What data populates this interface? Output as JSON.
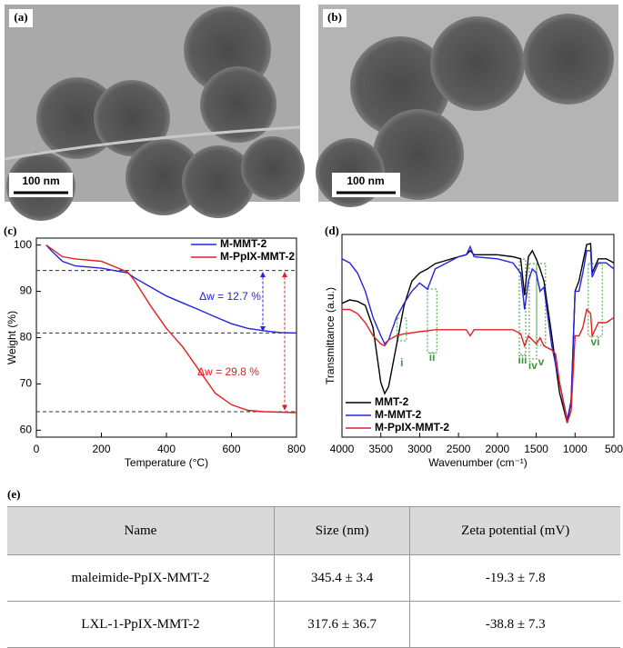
{
  "panels": {
    "a": {
      "label": "(a)",
      "scale_bar": "100 nm"
    },
    "b": {
      "label": "(b)",
      "scale_bar": "100 nm"
    },
    "c": {
      "label": "(c)"
    },
    "d": {
      "label": "(d)"
    },
    "e": {
      "label": "(e)"
    }
  },
  "chart_data": [
    {
      "type": "line",
      "x_label": "Temperature (°C)",
      "y_label": "Weight (%)",
      "x": [
        30,
        50,
        80,
        120,
        200,
        280,
        300,
        350,
        400,
        450,
        500,
        550,
        600,
        650,
        700,
        750,
        800
      ],
      "series": [
        {
          "name": "M-MMT-2",
          "color": "#2323e0",
          "values": [
            100,
            98.5,
            96.5,
            95.5,
            95,
            94,
            93,
            91,
            89,
            87.5,
            86,
            84.5,
            83,
            82,
            81.5,
            81.1,
            81
          ]
        },
        {
          "name": "M-PpIX-MMT-2",
          "color": "#e02020",
          "values": [
            100,
            99,
            97.5,
            97,
            96.5,
            94.2,
            92.5,
            87,
            82,
            78,
            73,
            68,
            65.5,
            64.3,
            64,
            63.9,
            63.8
          ]
        }
      ],
      "xlim": [
        0,
        800
      ],
      "xticks": [
        0,
        200,
        400,
        600,
        800
      ],
      "ylim": [
        58.5,
        101.5
      ],
      "yticks": [
        60,
        70,
        80,
        90,
        100
      ],
      "reference_lines": [
        94.5,
        81,
        64
      ],
      "annotations": [
        {
          "text": "Δw = 12.7 %",
          "color": "#2323e0"
        },
        {
          "text": "Δw = 29.8 %",
          "color": "#e02020"
        }
      ],
      "legend": "upper right"
    },
    {
      "type": "line",
      "x_label": "Wavenumber (cm⁻¹)",
      "y_label": "Transmittance (a.u.)",
      "x": [
        4000,
        3900,
        3800,
        3700,
        3600,
        3500,
        3450,
        3400,
        3300,
        3200,
        3100,
        3000,
        2900,
        2800,
        2500,
        2400,
        2350,
        2300,
        2000,
        1800,
        1700,
        1650,
        1600,
        1550,
        1500,
        1450,
        1400,
        1300,
        1250,
        1200,
        1100,
        1050,
        1000,
        950,
        900,
        850,
        800,
        780,
        700,
        600,
        500
      ],
      "series": [
        {
          "name": "MMT-2",
          "color": "#000000",
          "values": [
            66,
            67.7,
            67,
            65,
            54,
            27,
            21.5,
            25,
            45,
            65,
            77,
            81,
            83,
            85.6,
            89,
            90,
            92,
            90,
            90,
            89,
            88,
            70,
            89,
            92,
            88,
            83,
            77,
            50,
            36,
            22,
            7,
            18,
            72,
            77,
            86,
            95,
            95.5,
            81,
            88,
            88,
            86
          ]
        },
        {
          "name": "M-MMT-2",
          "color": "#2323e0",
          "values": [
            88,
            86,
            81,
            72,
            59,
            50,
            46,
            48,
            59,
            66,
            72,
            76,
            73,
            83,
            89,
            90,
            94,
            89,
            88,
            86,
            81,
            63,
            77,
            83,
            81,
            72,
            74,
            45,
            36,
            27,
            8.5,
            18,
            72,
            72,
            81,
            92,
            92,
            79,
            86,
            86,
            83
          ]
        },
        {
          "name": "M-PpIX-MMT-2",
          "color": "#e02020",
          "values": [
            63,
            63,
            61,
            56.5,
            50,
            46,
            45,
            48,
            50,
            51,
            51.5,
            52,
            52.5,
            53,
            53,
            53,
            50,
            53,
            53,
            53,
            51,
            45,
            50,
            48,
            46,
            49,
            45,
            43,
            41,
            27,
            7,
            13,
            50,
            50,
            54,
            63,
            61,
            50,
            56.5,
            56.5,
            59
          ]
        }
      ],
      "xlim": [
        4000,
        500
      ],
      "xticks": [
        4000,
        3500,
        3000,
        2500,
        2000,
        1500,
        1000,
        500
      ],
      "ylim": [
        0,
        100
      ],
      "regions": [
        {
          "label": "i",
          "xlim": [
            3290,
            3170
          ]
        },
        {
          "label": "ii",
          "xlim": [
            2900,
            2780
          ]
        },
        {
          "label": "iii",
          "xlim": [
            1717,
            1635
          ]
        },
        {
          "label": "iv",
          "xlim": [
            1590,
            1495
          ]
        },
        {
          "label": "v",
          "xlim": [
            1495,
            1380
          ]
        },
        {
          "label": "vi",
          "xlim": [
            830,
            650
          ]
        }
      ],
      "region_color": "#3a9a3a",
      "legend": "lower left"
    }
  ],
  "table": {
    "header": [
      "Name",
      "Size (nm)",
      "Zeta potential (mV)"
    ],
    "rows": [
      [
        "maleimide-PpIX-MMT-2",
        "345.4 ± 3.4",
        "-19.3 ± 7.8"
      ],
      [
        "LXL-1-PpIX-MMT-2",
        "317.6 ± 36.7",
        "-38.8 ± 7.3"
      ]
    ]
  }
}
